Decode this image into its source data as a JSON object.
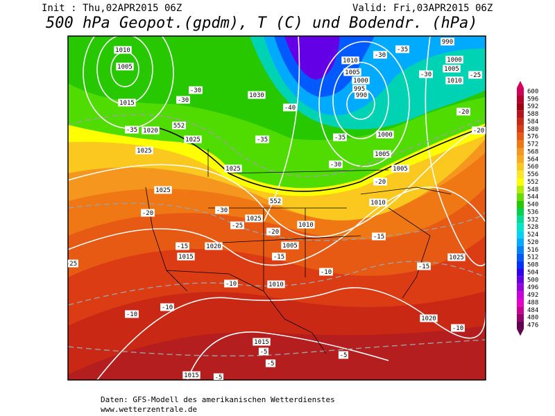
{
  "header": {
    "init": "Init : Thu,02APR2015 06Z",
    "valid": "Valid: Fri,03APR2015 06Z",
    "title": "500 hPa Geopot.(gpdm), T (C) und Bodendr. (hPa)"
  },
  "colorbar": {
    "levels": [
      600,
      596,
      592,
      588,
      584,
      580,
      576,
      572,
      568,
      564,
      560,
      556,
      552,
      548,
      544,
      540,
      536,
      532,
      528,
      524,
      520,
      516,
      512,
      508,
      504,
      500,
      496,
      492,
      488,
      484,
      480,
      476
    ],
    "colors": [
      "#d2005a",
      "#b4002d",
      "#a00014",
      "#b4141e",
      "#c82814",
      "#dc3c14",
      "#e65a14",
      "#f07814",
      "#f5961e",
      "#faaa1e",
      "#fac81e",
      "#fae628",
      "#ffff00",
      "#b4ec00",
      "#64dc00",
      "#28c800",
      "#00d250",
      "#00dc96",
      "#00e6c8",
      "#00d2f0",
      "#00aaff",
      "#0082ff",
      "#005aff",
      "#0032ff",
      "#3200f0",
      "#6400e6",
      "#9600dc",
      "#c800dc",
      "#e600c8",
      "#c80096",
      "#96006e",
      "#640050"
    ]
  },
  "map_labels": [
    "1010",
    "1005",
    "1015",
    "1020",
    "1025",
    "1025",
    "1025",
    "1025",
    "1030",
    "1010",
    "1005",
    "1000",
    "995",
    "990",
    "1000",
    "1005",
    "1005",
    "1010",
    "1025",
    "1010",
    "1005",
    "1020",
    "1015",
    "1010",
    "1020",
    "1025",
    "1015",
    "1015",
    "990",
    "1000",
    "1005",
    "1010",
    "-30",
    "-30",
    "-35",
    "-35",
    "-40",
    "-35",
    "-30",
    "-30",
    "-35",
    "-30",
    "-25",
    "-20",
    "-20",
    "-20",
    "-20",
    "-30",
    "-25",
    "-20",
    "-15",
    "-15",
    "-15",
    "-15",
    "-10",
    "-10",
    "-10",
    "-10",
    "-10",
    "-5",
    "-5",
    "-5",
    "-5",
    "-25",
    "552",
    "552"
  ],
  "footer": {
    "line1": "Daten: GFS-Modell des amerikanischen Wetterdienstes",
    "line2": "www.wetterzentrale.de"
  }
}
